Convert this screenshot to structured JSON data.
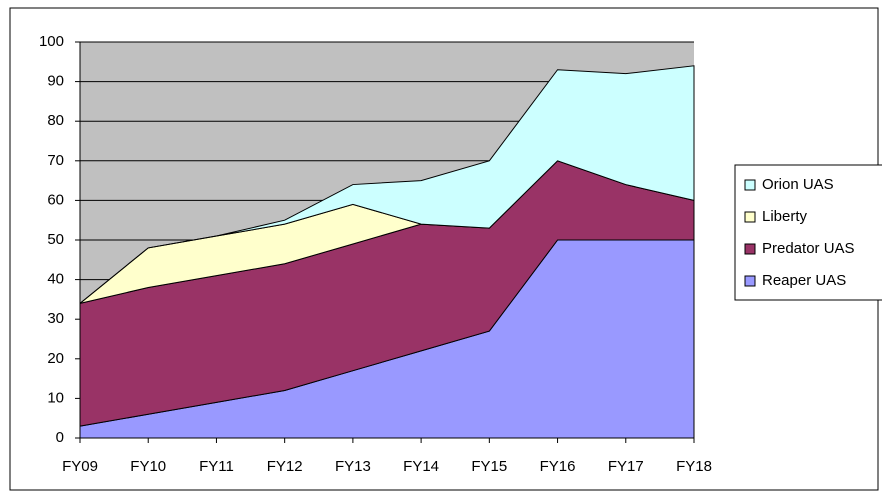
{
  "chart_data": {
    "type": "stacked_area",
    "categories": [
      "FY09",
      "FY10",
      "FY11",
      "FY12",
      "FY13",
      "FY14",
      "FY15",
      "FY16",
      "FY17",
      "FY18"
    ],
    "series": [
      {
        "name": "Reaper UAS",
        "color": "#9999ff",
        "values": [
          3,
          6,
          9,
          12,
          17,
          22,
          27,
          50,
          50,
          50
        ]
      },
      {
        "name": "Predator UAS",
        "color": "#993366",
        "values": [
          31,
          32,
          32,
          32,
          32,
          32,
          26,
          20,
          14,
          10
        ]
      },
      {
        "name": "Liberty",
        "color": "#ffffcc",
        "values": [
          0,
          10,
          10,
          10,
          10,
          0,
          0,
          0,
          0,
          0
        ]
      },
      {
        "name": "Orion UAS",
        "color": "#ccffff",
        "values": [
          0,
          0,
          0,
          1,
          5,
          11,
          17,
          23,
          28,
          34
        ]
      }
    ],
    "ylim": [
      0,
      100
    ],
    "yticks": [
      0,
      10,
      20,
      30,
      40,
      50,
      60,
      70,
      80,
      90,
      100
    ],
    "grid": true,
    "plot_background": "#c0c0c0",
    "legend": "right"
  }
}
